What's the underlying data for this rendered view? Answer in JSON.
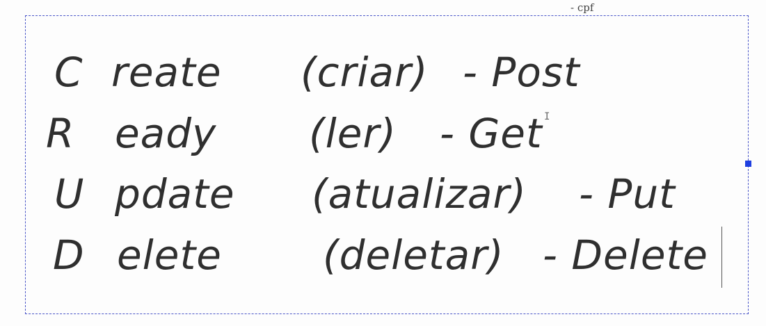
{
  "tag": "- cpf",
  "rows": [
    {
      "letter": "C",
      "rest": "reate",
      "translation": "(criar)",
      "method": "- Post"
    },
    {
      "letter": "R",
      "rest": "eady",
      "translation": "(ler)",
      "method": "- Get"
    },
    {
      "letter": "U",
      "rest": "pdate",
      "translation": "(atualizar)",
      "method": "- Put"
    },
    {
      "letter": "D",
      "rest": "elete",
      "translation": "(deletar)",
      "method": "- Delete"
    }
  ]
}
